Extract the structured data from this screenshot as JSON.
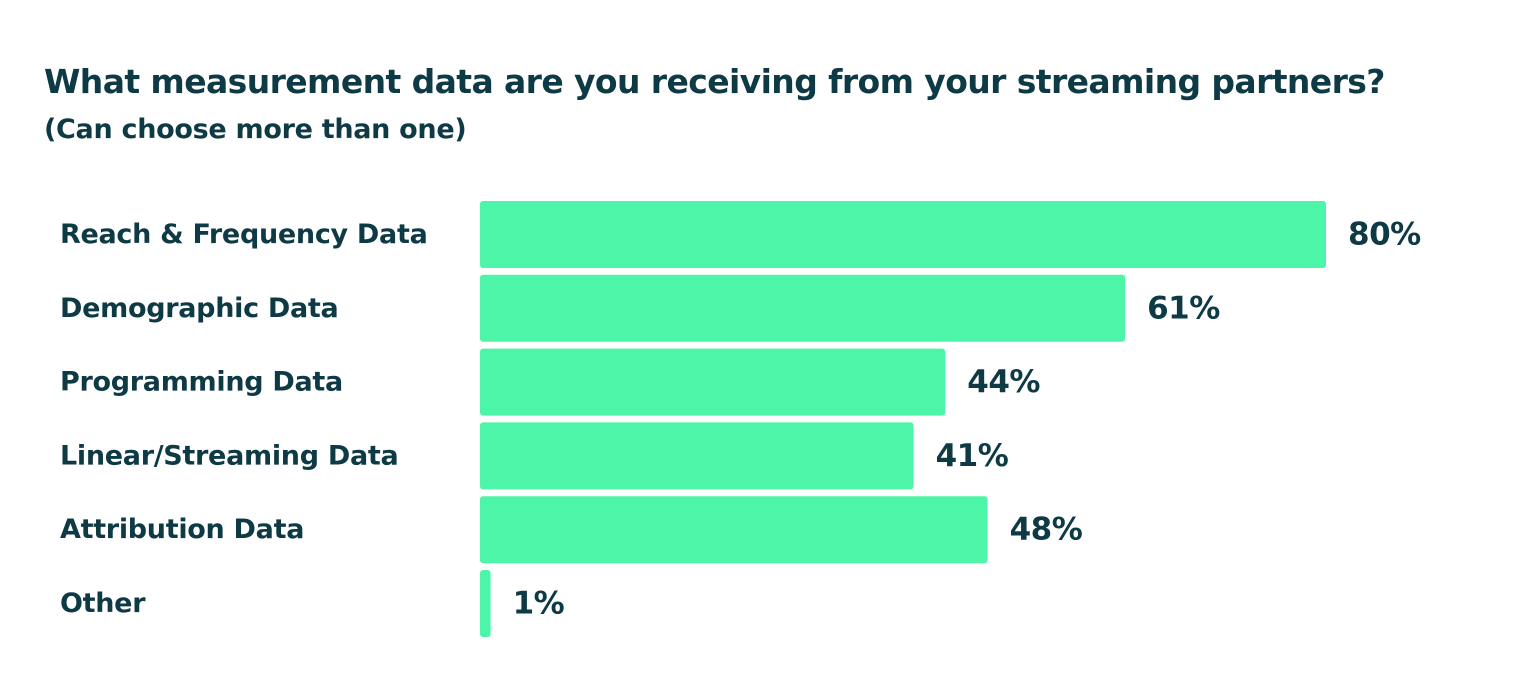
{
  "chart_data": {
    "type": "bar",
    "orientation": "horizontal",
    "title": "What measurement data are you receiving from your streaming partners?",
    "subtitle": "(Can choose more than one)",
    "categories": [
      "Reach & Frequency Data",
      "Demographic Data",
      "Programming Data",
      "Linear/Streaming Data",
      "Attribution Data",
      "Other"
    ],
    "values": [
      80,
      61,
      44,
      41,
      48,
      1
    ],
    "value_labels": [
      "80%",
      "61%",
      "44%",
      "41%",
      "48%",
      "1%"
    ],
    "unit": "%",
    "xlim": [
      0,
      100
    ],
    "grid": false,
    "legend": "none",
    "bar_color": "#4df5a8",
    "text_color": "#0e3a45"
  }
}
